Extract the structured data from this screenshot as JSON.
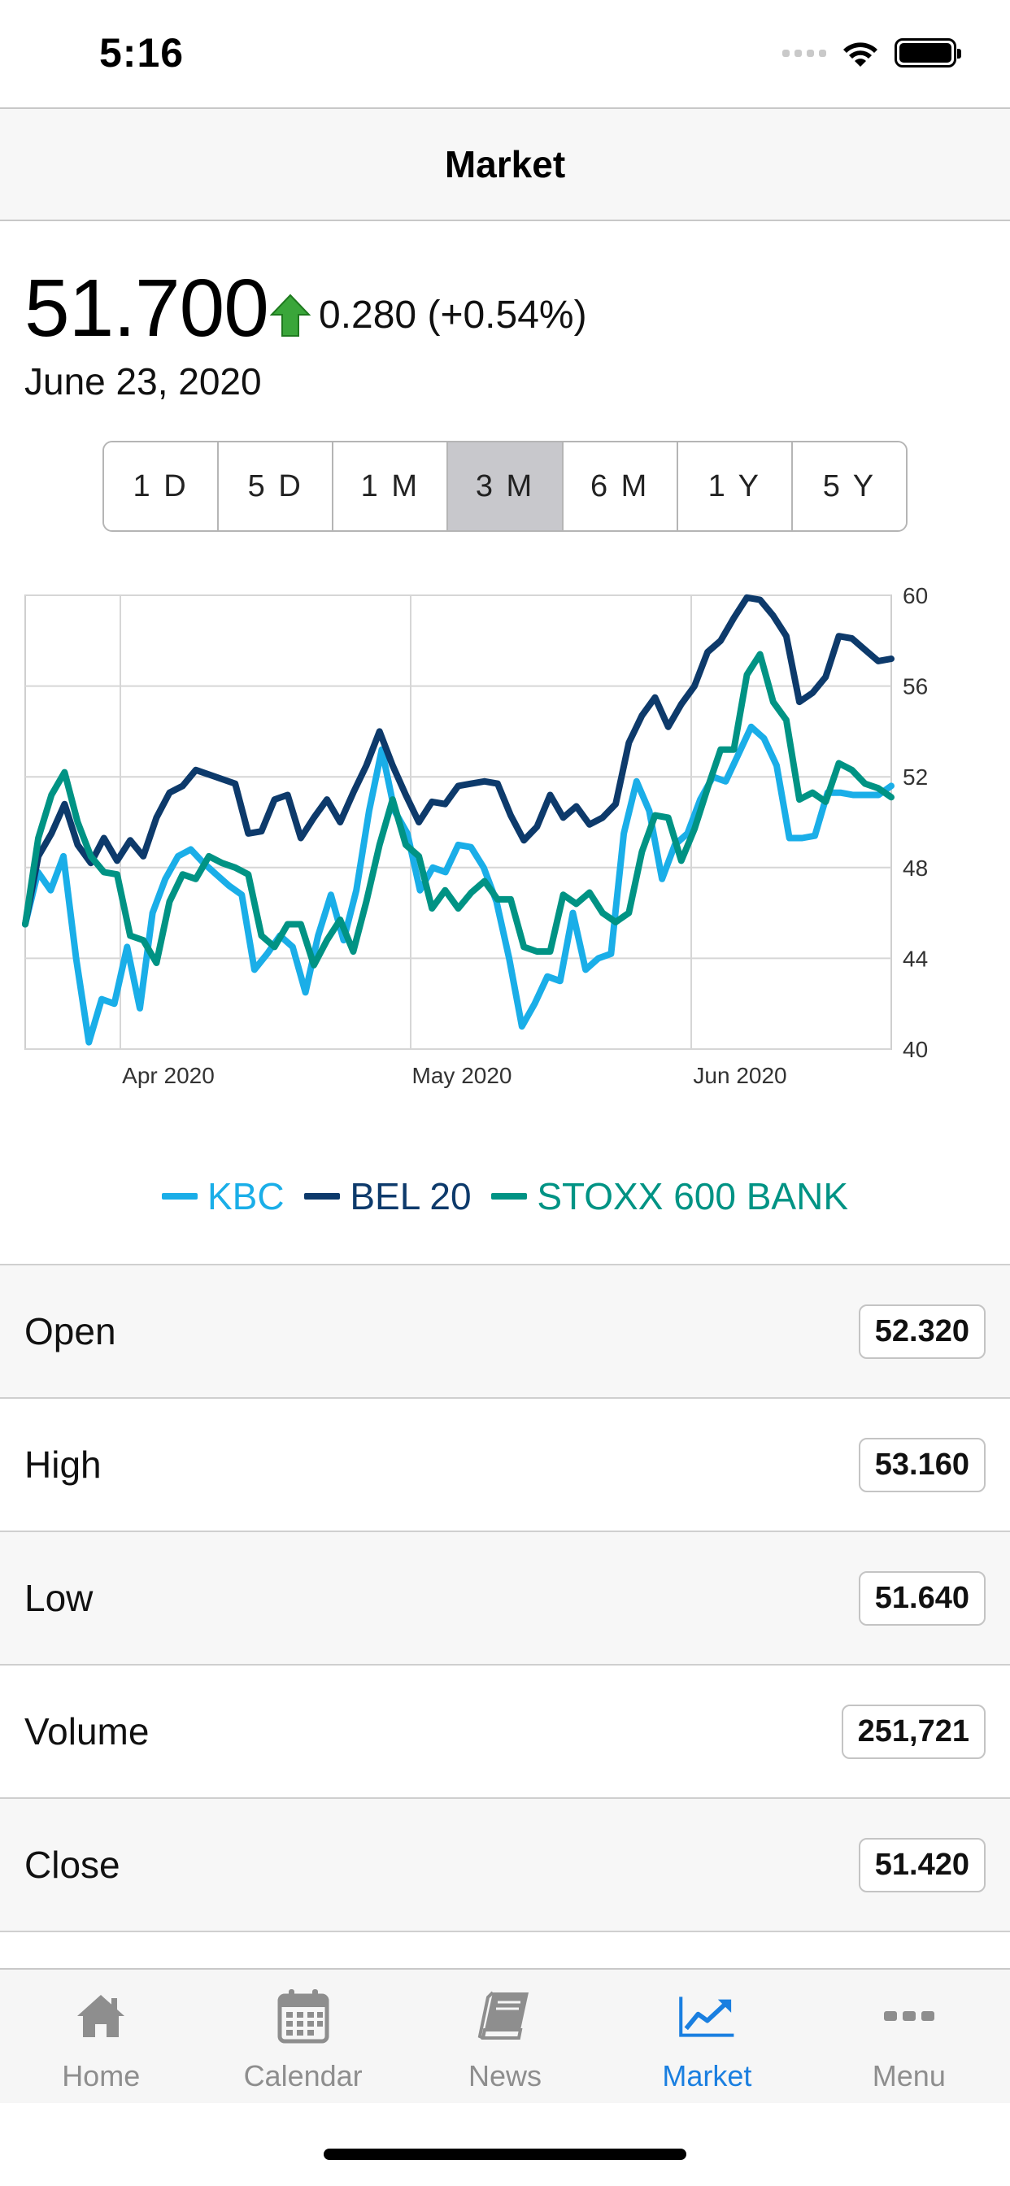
{
  "status_bar": {
    "time": "5:16"
  },
  "nav": {
    "title": "Market"
  },
  "quote": {
    "price": "51.700",
    "change": "0.280 (+0.54%)",
    "date": "June 23, 2020",
    "direction": "up",
    "up_color": "#3aa63a"
  },
  "ranges": {
    "items": [
      "1 D",
      "5 D",
      "1 M",
      "3 M",
      "6 M",
      "1 Y",
      "5 Y"
    ],
    "selected": "3 M"
  },
  "chart_data": {
    "type": "line",
    "x_ticks": [
      "Apr 2020",
      "May 2020",
      "Jun 2020"
    ],
    "y_ticks": [
      40,
      44,
      48,
      52,
      56,
      60
    ],
    "ylim": [
      40,
      60
    ],
    "grid": true,
    "legend_position": "bottom",
    "series": [
      {
        "name": "KBC",
        "color": "#1aaee8",
        "values": [
          45.5,
          47.8,
          47,
          48.5,
          44,
          40.3,
          42.2,
          42,
          44.5,
          41.8,
          46,
          47.5,
          48.5,
          48.8,
          48.2,
          47.7,
          47.2,
          46.8,
          43.5,
          44.2,
          45,
          44.5,
          42.5,
          45,
          46.8,
          44.8,
          47,
          50.5,
          53.2,
          50.5,
          49.5,
          47,
          48,
          47.8,
          49,
          48.9,
          48,
          46.5,
          44,
          41,
          42,
          43.2,
          43,
          46,
          43.5,
          44,
          44.2,
          49.5,
          51.8,
          50.5,
          47.5,
          49,
          49.5,
          51,
          52,
          51.8,
          53,
          54.2,
          53.7,
          52.5,
          49.3,
          49.3,
          49.4,
          51.3,
          51.3,
          51.2,
          51.2,
          51.2,
          51.6
        ]
      },
      {
        "name": "BEL 20",
        "color": "#0d3a6b",
        "values": [
          45.5,
          48.5,
          49.5,
          50.8,
          49,
          48.2,
          49.3,
          48.3,
          49.2,
          48.5,
          50.2,
          51.3,
          51.6,
          52.3,
          52.1,
          51.9,
          51.7,
          49.5,
          49.6,
          51,
          51.2,
          49.3,
          50.2,
          51,
          50,
          51.3,
          52.5,
          54,
          52.5,
          51.2,
          50,
          50.9,
          50.8,
          51.6,
          51.7,
          51.8,
          51.7,
          50.3,
          49.2,
          49.8,
          51.2,
          50.2,
          50.7,
          49.9,
          50.2,
          50.8,
          53.5,
          54.7,
          55.5,
          54.2,
          55.2,
          56,
          57.5,
          58,
          59,
          59.9,
          59.8,
          59.1,
          58.2,
          55.3,
          55.7,
          56.4,
          58.2,
          58.1,
          57.6,
          57.1,
          57.2
        ]
      },
      {
        "name": "STOXX 600 BANK",
        "color": "#009384",
        "values": [
          45.5,
          49.3,
          51.2,
          52.2,
          50,
          48.5,
          47.8,
          47.7,
          45,
          44.8,
          43.8,
          46.5,
          47.7,
          47.5,
          48.5,
          48.2,
          48,
          47.7,
          45,
          44.5,
          45.5,
          45.5,
          43.7,
          44.8,
          45.7,
          44.3,
          46.5,
          49,
          51,
          49,
          48.5,
          46.2,
          47,
          46.2,
          46.9,
          47.4,
          46.6,
          46.6,
          44.5,
          44.3,
          44.3,
          46.8,
          46.4,
          46.9,
          46,
          45.6,
          46,
          48.7,
          50.3,
          50.2,
          48.3,
          49.7,
          51.5,
          53.2,
          53.2,
          56.5,
          57.4,
          55.3,
          54.5,
          51,
          51.3,
          50.9,
          52.6,
          52.3,
          51.7,
          51.5,
          51.1
        ]
      }
    ]
  },
  "stats": [
    {
      "label": "Open",
      "value": "52.320"
    },
    {
      "label": "High",
      "value": "53.160"
    },
    {
      "label": "Low",
      "value": "51.640"
    },
    {
      "label": "Volume",
      "value": "251,721"
    },
    {
      "label": "Close",
      "value": "51.420"
    }
  ],
  "tabs": [
    {
      "label": "Home",
      "icon": "home-icon"
    },
    {
      "label": "Calendar",
      "icon": "calendar-icon"
    },
    {
      "label": "News",
      "icon": "book-icon"
    },
    {
      "label": "Market",
      "icon": "chart-icon",
      "active": true
    },
    {
      "label": "Menu",
      "icon": "more-icon"
    }
  ],
  "colors": {
    "accent": "#1a7fe0",
    "inactive": "#8e8e8e"
  }
}
